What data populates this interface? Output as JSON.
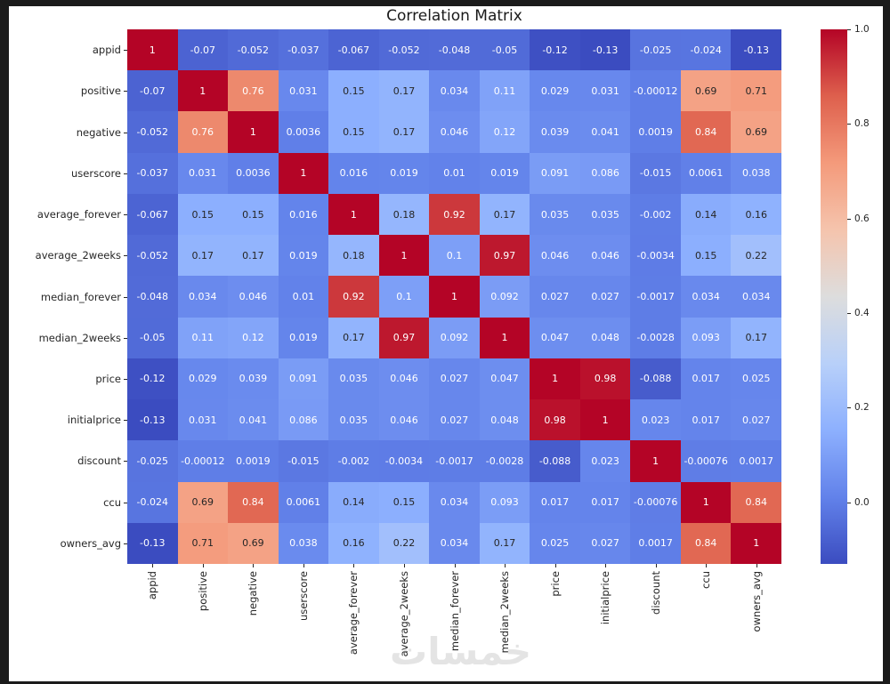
{
  "window": {
    "frame_color": "#1b1b1b",
    "canvas_color": "#ffffff"
  },
  "chart_data": {
    "type": "heatmap",
    "title": "Correlation Matrix",
    "categories": [
      "appid",
      "positive",
      "negative",
      "userscore",
      "average_forever",
      "average_2weeks",
      "median_forever",
      "median_2weeks",
      "price",
      "initialprice",
      "discount",
      "ccu",
      "owners_avg"
    ],
    "matrix": [
      [
        1,
        -0.07,
        -0.052,
        -0.037,
        -0.067,
        -0.052,
        -0.048,
        -0.05,
        -0.12,
        -0.13,
        -0.025,
        -0.024,
        -0.13
      ],
      [
        -0.07,
        1,
        0.76,
        0.031,
        0.15,
        0.17,
        0.034,
        0.11,
        0.029,
        0.031,
        -0.00012,
        0.69,
        0.71
      ],
      [
        -0.052,
        0.76,
        1,
        0.0036,
        0.15,
        0.17,
        0.046,
        0.12,
        0.039,
        0.041,
        0.0019,
        0.84,
        0.69
      ],
      [
        -0.037,
        0.031,
        0.0036,
        1,
        0.016,
        0.019,
        0.01,
        0.019,
        0.091,
        0.086,
        -0.015,
        0.0061,
        0.038
      ],
      [
        -0.067,
        0.15,
        0.15,
        0.016,
        1,
        0.18,
        0.92,
        0.17,
        0.035,
        0.035,
        -0.002,
        0.14,
        0.16
      ],
      [
        -0.052,
        0.17,
        0.17,
        0.019,
        0.18,
        1,
        0.1,
        0.97,
        0.046,
        0.046,
        -0.0034,
        0.15,
        0.22
      ],
      [
        -0.048,
        0.034,
        0.046,
        0.01,
        0.92,
        0.1,
        1,
        0.092,
        0.027,
        0.027,
        -0.0017,
        0.034,
        0.034
      ],
      [
        -0.05,
        0.11,
        0.12,
        0.019,
        0.17,
        0.97,
        0.092,
        1,
        0.047,
        0.048,
        -0.0028,
        0.093,
        0.17
      ],
      [
        -0.12,
        0.029,
        0.039,
        0.091,
        0.035,
        0.046,
        0.027,
        0.047,
        1,
        0.98,
        -0.088,
        0.017,
        0.025
      ],
      [
        -0.13,
        0.031,
        0.041,
        0.086,
        0.035,
        0.046,
        0.027,
        0.048,
        0.98,
        1,
        0.023,
        0.017,
        0.027
      ],
      [
        -0.025,
        -0.00012,
        0.0019,
        -0.015,
        -0.002,
        -0.0034,
        -0.0017,
        -0.0028,
        -0.088,
        0.023,
        1,
        -0.00076,
        0.0017
      ],
      [
        -0.024,
        0.69,
        0.84,
        0.0061,
        0.14,
        0.15,
        0.034,
        0.093,
        0.017,
        0.017,
        -0.00076,
        1,
        0.84
      ],
      [
        -0.13,
        0.71,
        0.69,
        0.038,
        0.16,
        0.22,
        0.034,
        0.17,
        0.025,
        0.027,
        0.0017,
        0.84,
        1
      ]
    ],
    "vmin": -0.13,
    "vmax": 1.0,
    "colormap": {
      "name": "coolwarm",
      "stops": [
        {
          "t": 0.0,
          "color": "#3b4cc0"
        },
        {
          "t": 0.125,
          "color": "#6282ea"
        },
        {
          "t": 0.25,
          "color": "#8db0fe"
        },
        {
          "t": 0.375,
          "color": "#b8d0f9"
        },
        {
          "t": 0.5,
          "color": "#dddddd"
        },
        {
          "t": 0.625,
          "color": "#f5c4ad"
        },
        {
          "t": 0.75,
          "color": "#f49a7b"
        },
        {
          "t": 0.875,
          "color": "#de604d"
        },
        {
          "t": 1.0,
          "color": "#b40426"
        }
      ]
    },
    "annotation_text_dark": "#262626",
    "annotation_text_light": "#ffffff",
    "colorbar": {
      "position": "right",
      "tick_labels": [
        "1.0",
        "0.8",
        "0.6",
        "0.4",
        "0.2",
        "0.0"
      ]
    },
    "axis": {
      "tick_color": "#262626",
      "label_color": "#262626"
    },
    "legend": "colorbar",
    "grid": false
  },
  "watermark": {
    "text": "خمسات",
    "color": "#cfcfcf"
  }
}
